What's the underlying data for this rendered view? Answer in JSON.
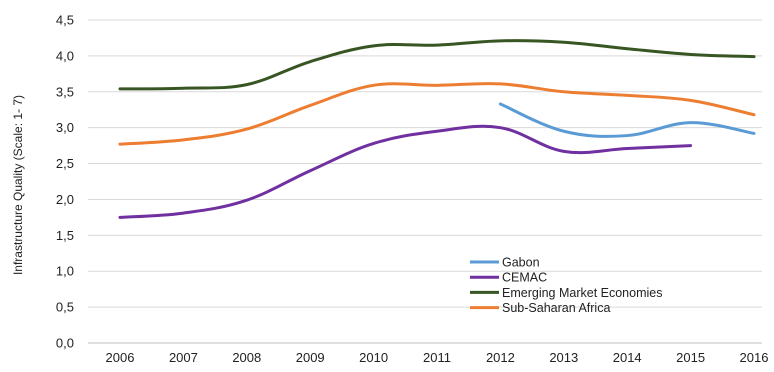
{
  "chart_data": {
    "type": "line",
    "title": "",
    "xlabel": "",
    "ylabel": "Infrastructure Quality (Scale: 1- 7)",
    "x": [
      2006,
      2007,
      2008,
      2009,
      2010,
      2011,
      2012,
      2013,
      2014,
      2015,
      2016
    ],
    "x_tick_labels": [
      "2006",
      "2007",
      "2008",
      "2009",
      "2010",
      "2011",
      "2012",
      "2013",
      "2014",
      "2015",
      "2016"
    ],
    "ylim": [
      0,
      4.5
    ],
    "y_ticks": [
      0,
      0.5,
      1.0,
      1.5,
      2.0,
      2.5,
      3.0,
      3.5,
      4.0,
      4.5
    ],
    "y_tick_labels": [
      "0,0",
      "0,5",
      "1,0",
      "1,5",
      "2,0",
      "2,5",
      "3,0",
      "3,5",
      "4,0",
      "4,5"
    ],
    "grid": true,
    "legend_position": "bottom-center",
    "series": [
      {
        "name": "Gabon",
        "color": "#5b9bd5",
        "values": [
          null,
          null,
          null,
          null,
          null,
          null,
          3.33,
          2.95,
          2.89,
          3.07,
          2.92
        ]
      },
      {
        "name": "CEMAC",
        "color": "#7030a0",
        "values": [
          1.75,
          1.81,
          1.99,
          2.4,
          2.78,
          2.95,
          3.0,
          2.67,
          2.71,
          2.75,
          null
        ]
      },
      {
        "name": "Emerging Market Economies",
        "color": "#375623",
        "values": [
          3.54,
          3.55,
          3.6,
          3.92,
          4.14,
          4.15,
          4.21,
          4.19,
          4.1,
          4.02,
          3.99
        ]
      },
      {
        "name": "Sub-Saharan Africa",
        "color": "#ed7d31",
        "values": [
          2.77,
          2.83,
          2.98,
          3.31,
          3.59,
          3.59,
          3.61,
          3.5,
          3.45,
          3.38,
          3.18
        ]
      }
    ]
  }
}
